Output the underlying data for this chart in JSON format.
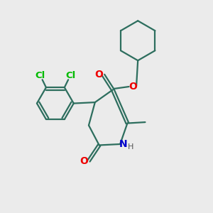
{
  "bg_color": "#ebebeb",
  "bond_color": "#2d6e5e",
  "cl_color": "#00bb00",
  "o_color": "#ee0000",
  "n_color": "#0000cc",
  "line_width": 1.6,
  "fig_size": [
    3.0,
    3.0
  ],
  "dpi": 100,
  "xlim": [
    0,
    10
  ],
  "ylim": [
    0,
    10
  ]
}
